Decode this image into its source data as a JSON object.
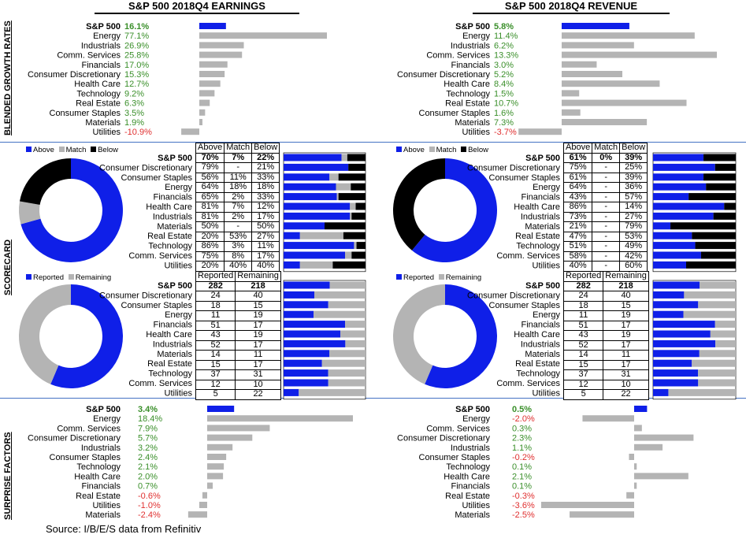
{
  "titles": {
    "left": "S&P 500 2018Q4 EARNINGS",
    "right": "S&P 500 2018Q4 REVENUE"
  },
  "section_labels": {
    "growth": "BLENDED GROWTH RATES",
    "scorecard": "SCORECARD",
    "surprise": "SURPRISE FACTORS"
  },
  "source": "Source: I/B/E/S data from Refinitiv",
  "colors": {
    "blue": "#0f1fe8",
    "gray": "#b4b4b4",
    "black": "#000000",
    "green": "#3a8f2a",
    "red": "#e03030"
  },
  "legends": {
    "scorecard": {
      "above": "Above",
      "match": "Match",
      "below": "Below"
    },
    "reported": {
      "reported": "Reported",
      "remaining": "Remaining"
    }
  },
  "table_headers": {
    "scorecard": [
      "Above",
      "Match",
      "Below"
    ],
    "reported": [
      "Reported",
      "Remaining"
    ]
  },
  "chart_data": [
    {
      "type": "bar",
      "orientation": "horizontal",
      "panel": "earnings-growth",
      "categories": [
        "S&P 500",
        "Energy",
        "Industrials",
        "Comm. Services",
        "Financials",
        "Consumer Discretionary",
        "Health Care",
        "Technology",
        "Real Estate",
        "Consumer Staples",
        "Materials",
        "Utilities"
      ],
      "values": [
        16.1,
        77.1,
        26.9,
        25.8,
        17.0,
        15.3,
        12.7,
        9.2,
        6.3,
        3.5,
        1.9,
        -10.9
      ],
      "labels": [
        "16.1%",
        "77.1%",
        "26.9%",
        "25.8%",
        "17.0%",
        "15.3%",
        "12.7%",
        "9.2%",
        "6.3%",
        "3.5%",
        "1.9%",
        "-10.9%"
      ]
    },
    {
      "type": "bar",
      "orientation": "horizontal",
      "panel": "revenue-growth",
      "categories": [
        "S&P 500",
        "Energy",
        "Industrials",
        "Comm. Services",
        "Financials",
        "Consumer Discretionary",
        "Health Care",
        "Technology",
        "Real Estate",
        "Consumer Staples",
        "Materials",
        "Utilities"
      ],
      "values": [
        5.8,
        11.4,
        6.2,
        13.3,
        3.0,
        5.2,
        8.4,
        1.5,
        10.7,
        1.6,
        7.3,
        -3.7
      ],
      "labels": [
        "5.8%",
        "11.4%",
        "6.2%",
        "13.3%",
        "3.0%",
        "5.2%",
        "8.4%",
        "1.5%",
        "10.7%",
        "1.6%",
        "7.3%",
        "-3.7%"
      ]
    },
    {
      "type": "table",
      "panel": "earnings-scorecard",
      "categories": [
        "S&P 500",
        "Consumer Discretionary",
        "Consumer Staples",
        "Energy",
        "Financials",
        "Health Care",
        "Industrials",
        "Materials",
        "Real Estate",
        "Technology",
        "Comm. Services",
        "Utilities"
      ],
      "above": [
        "70%",
        "79%",
        "56%",
        "64%",
        "65%",
        "81%",
        "81%",
        "50%",
        "20%",
        "86%",
        "75%",
        "20%"
      ],
      "match": [
        "7%",
        "-",
        "11%",
        "18%",
        "2%",
        "7%",
        "2%",
        "-",
        "53%",
        "3%",
        "8%",
        "40%"
      ],
      "below": [
        "22%",
        "21%",
        "33%",
        "18%",
        "33%",
        "12%",
        "17%",
        "50%",
        "27%",
        "11%",
        "17%",
        "40%"
      ],
      "above_v": [
        70,
        79,
        56,
        64,
        65,
        81,
        81,
        50,
        20,
        86,
        75,
        20
      ],
      "match_v": [
        7,
        0,
        11,
        18,
        2,
        7,
        2,
        0,
        53,
        3,
        8,
        40
      ],
      "below_v": [
        22,
        21,
        33,
        18,
        33,
        12,
        17,
        50,
        27,
        11,
        17,
        40
      ]
    },
    {
      "type": "table",
      "panel": "revenue-scorecard",
      "categories": [
        "S&P 500",
        "Consumer Discretionary",
        "Consumer Staples",
        "Energy",
        "Financials",
        "Health Care",
        "Industrials",
        "Materials",
        "Real Estate",
        "Technology",
        "Comm. Services",
        "Utilities"
      ],
      "above": [
        "61%",
        "75%",
        "61%",
        "64%",
        "43%",
        "86%",
        "73%",
        "21%",
        "47%",
        "51%",
        "58%",
        "40%"
      ],
      "match": [
        "0%",
        "-",
        "-",
        "-",
        "-",
        "-",
        "-",
        "-",
        "-",
        "-",
        "-",
        "-"
      ],
      "below": [
        "39%",
        "25%",
        "39%",
        "36%",
        "57%",
        "14%",
        "27%",
        "79%",
        "53%",
        "49%",
        "42%",
        "60%"
      ],
      "above_v": [
        61,
        75,
        61,
        64,
        43,
        86,
        73,
        21,
        47,
        51,
        58,
        40
      ],
      "match_v": [
        0,
        0,
        0,
        0,
        0,
        0,
        0,
        0,
        0,
        0,
        0,
        0
      ],
      "below_v": [
        39,
        25,
        39,
        36,
        57,
        14,
        27,
        79,
        53,
        49,
        42,
        60
      ]
    },
    {
      "type": "table",
      "panel": "earnings-reported",
      "categories": [
        "S&P 500",
        "Consumer Discretionary",
        "Consumer Staples",
        "Energy",
        "Financials",
        "Health Care",
        "Industrials",
        "Materials",
        "Real Estate",
        "Technology",
        "Comm. Services",
        "Utilities"
      ],
      "reported": [
        282,
        24,
        18,
        11,
        51,
        43,
        52,
        14,
        15,
        37,
        12,
        5
      ],
      "remaining": [
        218,
        40,
        15,
        19,
        17,
        19,
        17,
        11,
        17,
        31,
        10,
        22
      ]
    },
    {
      "type": "table",
      "panel": "revenue-reported",
      "categories": [
        "S&P 500",
        "Consumer Discretionary",
        "Consumer Staples",
        "Energy",
        "Financials",
        "Health Care",
        "Industrials",
        "Materials",
        "Real Estate",
        "Technology",
        "Comm. Services",
        "Utilities"
      ],
      "reported": [
        282,
        24,
        18,
        11,
        51,
        43,
        52,
        14,
        15,
        37,
        12,
        5
      ],
      "remaining": [
        218,
        40,
        15,
        19,
        17,
        19,
        17,
        11,
        17,
        31,
        10,
        22
      ]
    },
    {
      "type": "bar",
      "orientation": "horizontal",
      "panel": "earnings-surprise",
      "categories": [
        "S&P 500",
        "Energy",
        "Comm. Services",
        "Consumer Discretionary",
        "Industrials",
        "Consumer Staples",
        "Technology",
        "Health Care",
        "Financials",
        "Real Estate",
        "Utilities",
        "Materials"
      ],
      "values": [
        3.4,
        18.4,
        7.9,
        5.7,
        3.2,
        2.4,
        2.1,
        2.0,
        0.7,
        -0.6,
        -1.0,
        -2.4
      ],
      "labels": [
        "3.4%",
        "18.4%",
        "7.9%",
        "5.7%",
        "3.2%",
        "2.4%",
        "2.1%",
        "2.0%",
        "0.7%",
        "-0.6%",
        "-1.0%",
        "-2.4%"
      ]
    },
    {
      "type": "bar",
      "orientation": "horizontal",
      "panel": "revenue-surprise",
      "categories": [
        "S&P 500",
        "Energy",
        "Comm. Services",
        "Consumer Discretionary",
        "Industrials",
        "Consumer Staples",
        "Technology",
        "Health Care",
        "Financials",
        "Real Estate",
        "Utilities",
        "Materials"
      ],
      "values": [
        0.5,
        -2.0,
        0.3,
        2.3,
        1.1,
        -0.2,
        0.1,
        2.1,
        0.1,
        -0.3,
        -3.6,
        -2.5
      ],
      "labels": [
        "0.5%",
        "-2.0%",
        "0.3%",
        "2.3%",
        "1.1%",
        "-0.2%",
        "0.1%",
        "2.1%",
        "0.1%",
        "-0.3%",
        "-3.6%",
        "-2.5%"
      ]
    }
  ]
}
